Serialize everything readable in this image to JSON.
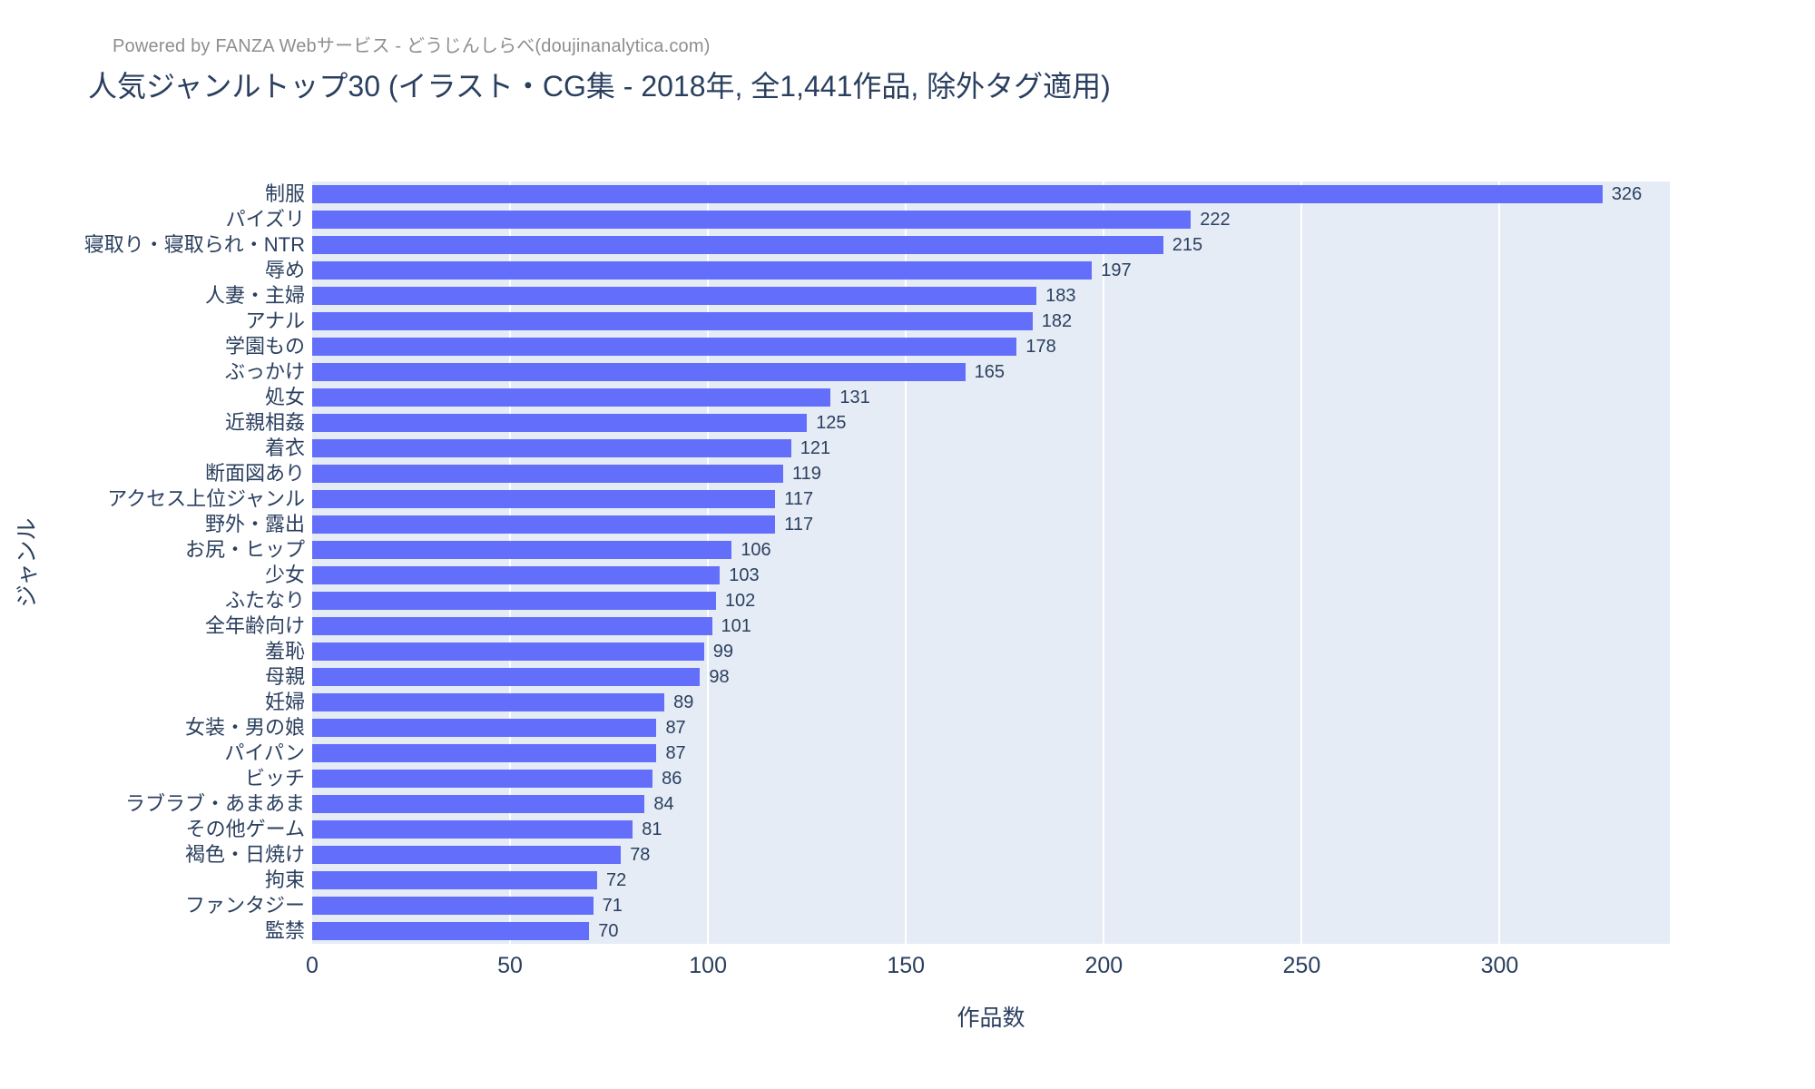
{
  "header": {
    "powered_by": "Powered by FANZA Webサービス - どうじんしらべ(doujinanalytica.com)"
  },
  "chart_data": {
    "type": "bar",
    "orientation": "horizontal",
    "title": "人気ジャンルトップ30 (イラスト・CG集 - 2018年, 全1,441作品, 除外タグ適用)",
    "xlabel": "作品数",
    "ylabel": "ジャンル",
    "xlim": [
      0,
      343
    ],
    "xticks": [
      0,
      50,
      100,
      150,
      200,
      250,
      300
    ],
    "grid": true,
    "legend": "none",
    "categories": [
      "制服",
      "パイズリ",
      "寝取り・寝取られ・NTR",
      "辱め",
      "人妻・主婦",
      "アナル",
      "学園もの",
      "ぶっかけ",
      "処女",
      "近親相姦",
      "着衣",
      "断面図あり",
      "アクセス上位ジャンル",
      "野外・露出",
      "お尻・ヒップ",
      "少女",
      "ふたなり",
      "全年齢向け",
      "羞恥",
      "母親",
      "妊婦",
      "女装・男の娘",
      "パイパン",
      "ビッチ",
      "ラブラブ・あまあま",
      "その他ゲーム",
      "褐色・日焼け",
      "拘束",
      "ファンタジー",
      "監禁"
    ],
    "values": [
      326,
      222,
      215,
      197,
      183,
      182,
      178,
      165,
      131,
      125,
      121,
      119,
      117,
      117,
      106,
      103,
      102,
      101,
      99,
      98,
      89,
      87,
      87,
      86,
      84,
      81,
      78,
      72,
      71,
      70
    ],
    "colors": {
      "bar": "#636efa",
      "plot_bg": "#e5ecf6",
      "grid": "#ffffff",
      "text": "#2a3f5f",
      "annotation": "#8e8e8e"
    }
  }
}
